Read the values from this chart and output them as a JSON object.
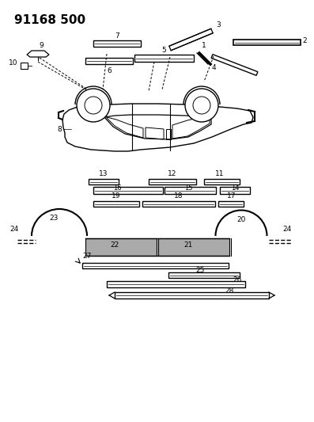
{
  "title": "91168 500",
  "bg_color": "#ffffff",
  "title_fontsize": 11,
  "title_bold": true,
  "fig_width": 3.97,
  "fig_height": 5.33
}
